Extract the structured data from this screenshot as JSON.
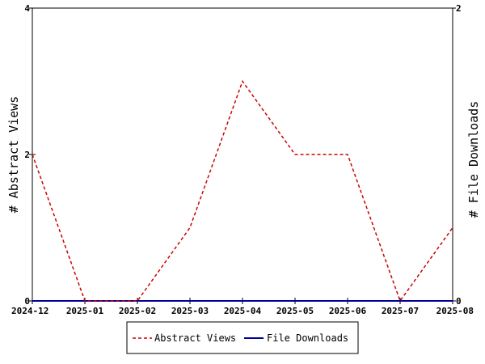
{
  "chart_data": {
    "type": "line",
    "x": [
      "2024-12",
      "2025-01",
      "2025-02",
      "2025-03",
      "2025-04",
      "2025-05",
      "2025-06",
      "2025-07",
      "2025-08"
    ],
    "series": [
      {
        "name": "Abstract Views",
        "axis": "left",
        "color": "#cc0000",
        "style": "dashed",
        "values": [
          2,
          0,
          0,
          1,
          3,
          2,
          2,
          0,
          1
        ]
      },
      {
        "name": "File Downloads",
        "axis": "right",
        "color": "#000099",
        "style": "solid",
        "values": [
          0,
          0,
          0,
          0,
          0,
          0,
          0,
          0,
          0
        ]
      }
    ],
    "ylabel_left": "# Abstract Views",
    "ylabel_right": "# File Downloads",
    "ylim_left": [
      0,
      4
    ],
    "ylim_right": [
      0,
      2
    ],
    "yticks_left": [
      "0",
      "2",
      "4"
    ],
    "yticks_right": [
      "0",
      "2"
    ],
    "grid": false,
    "legend_position": "bottom-center"
  }
}
